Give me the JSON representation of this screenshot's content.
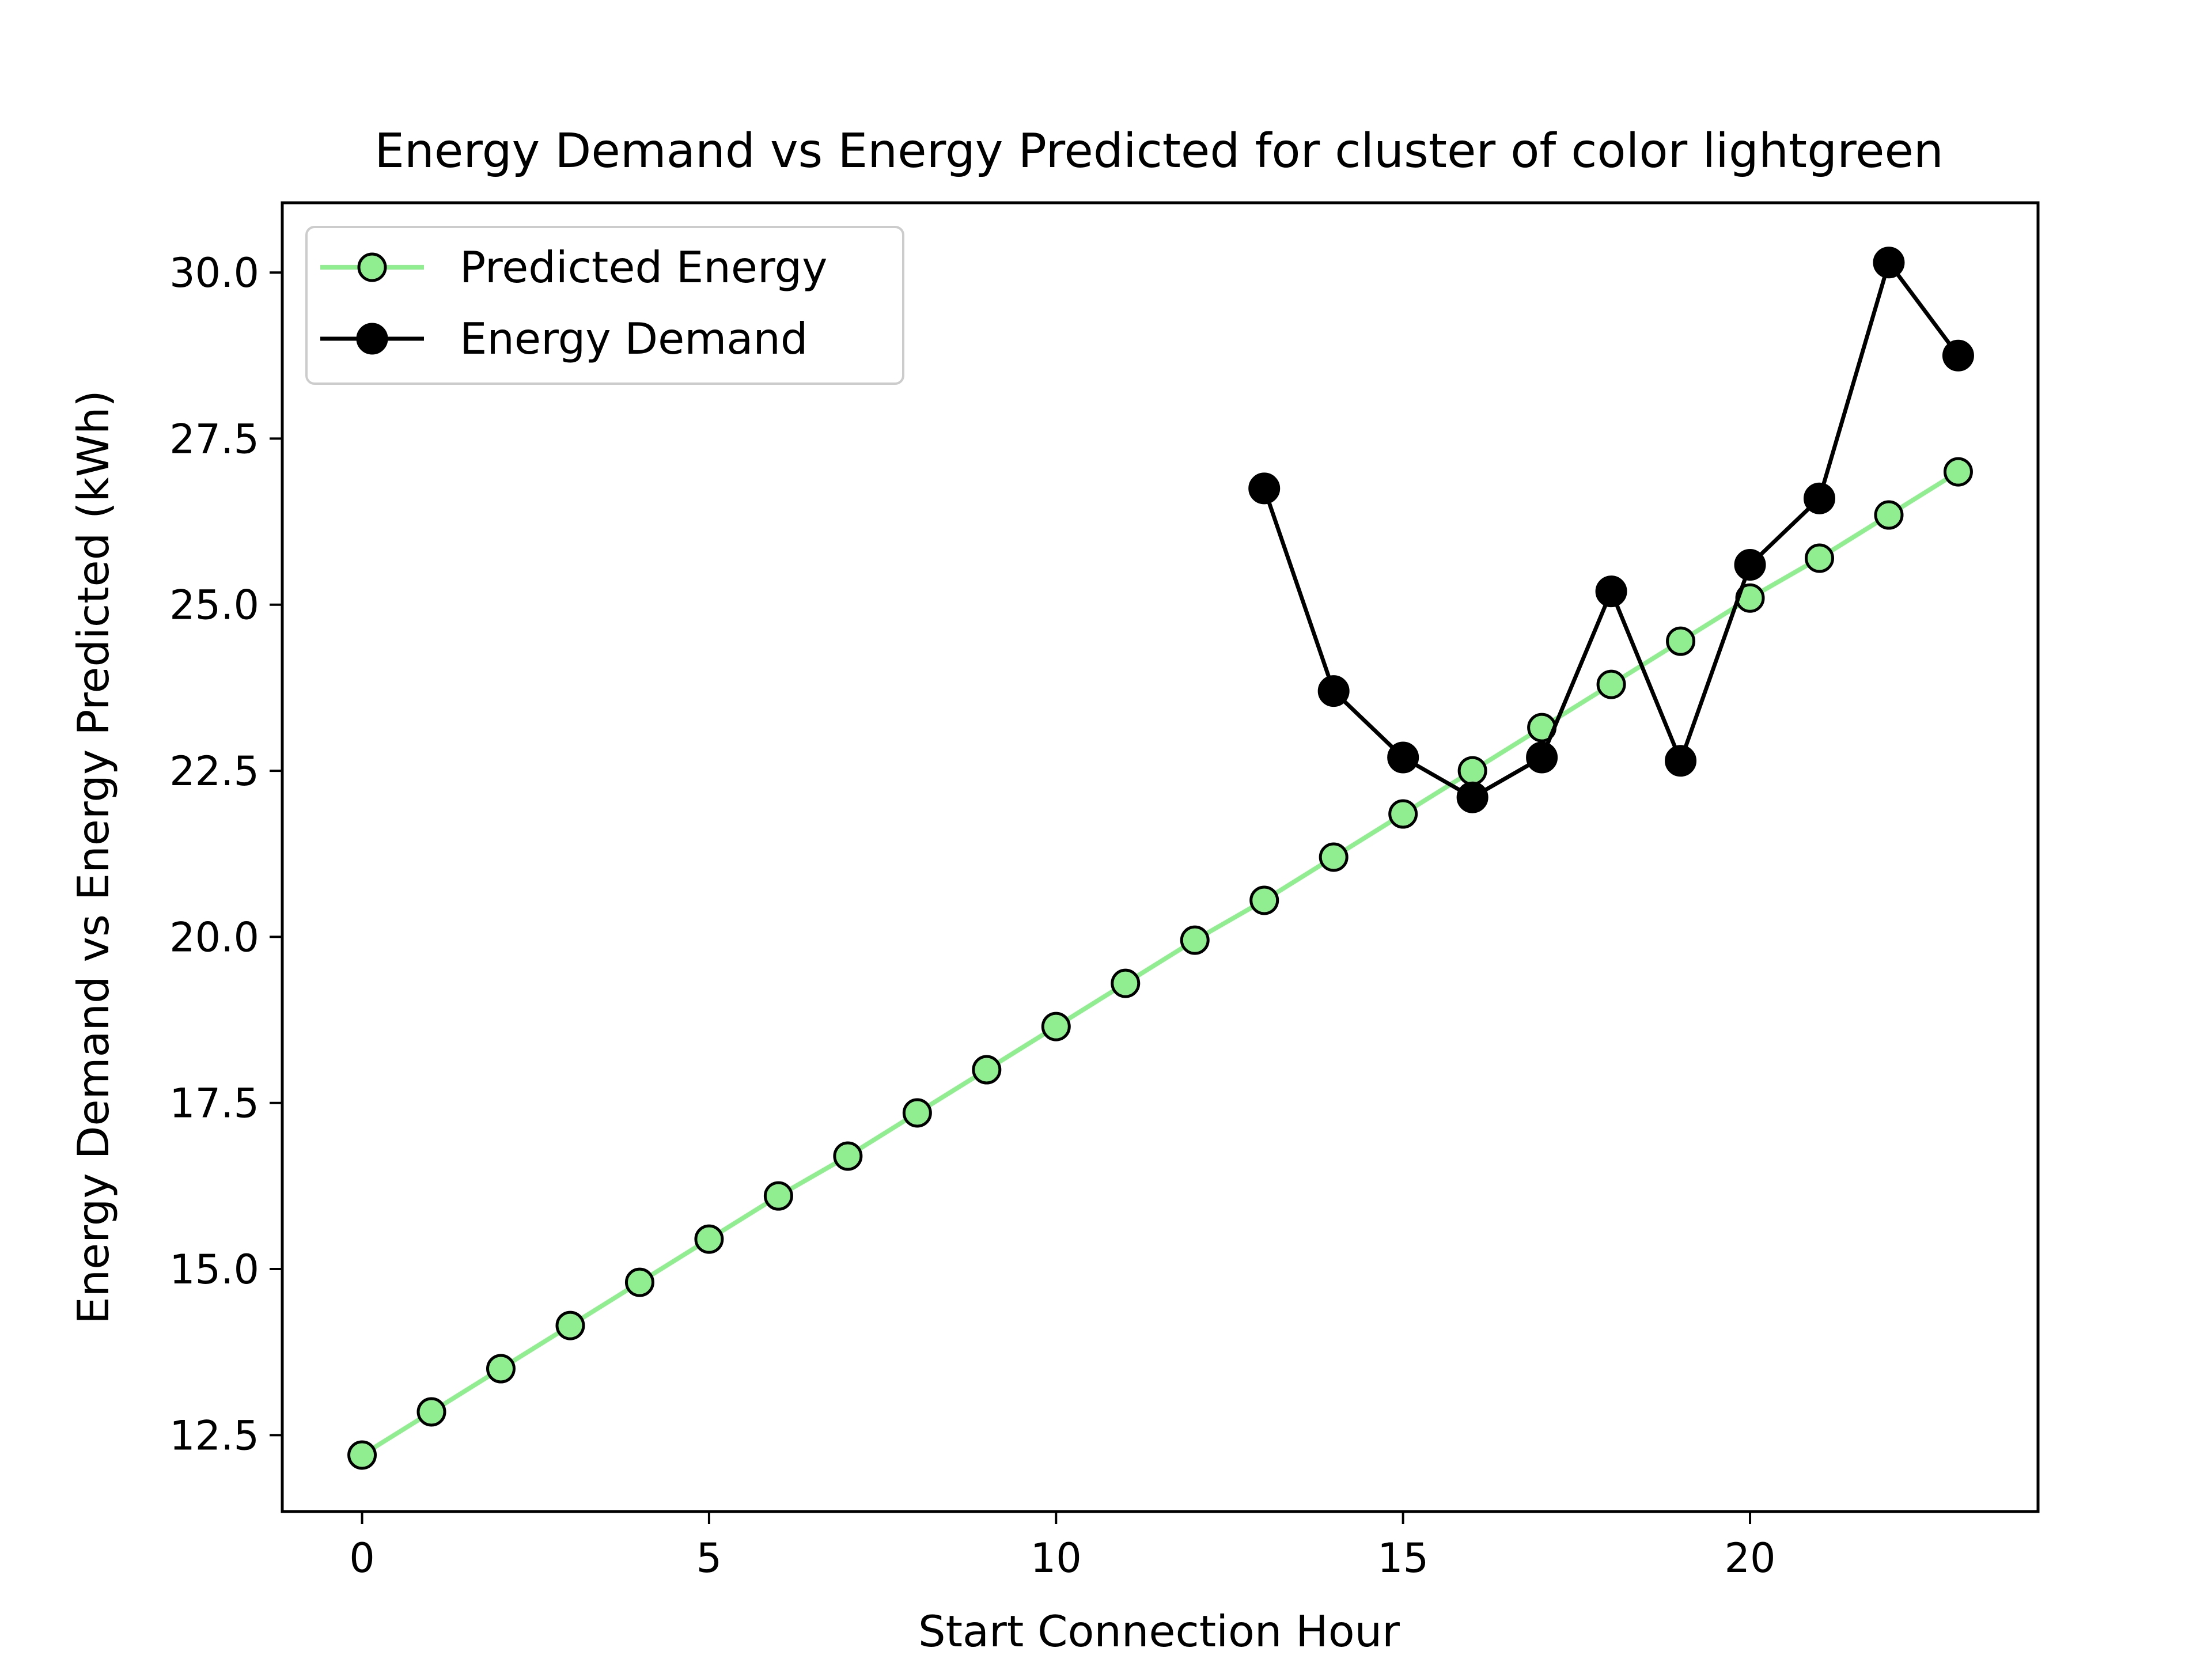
{
  "chart_data": {
    "type": "line",
    "title": "Energy Demand vs Energy Predicted for cluster of color  lightgreen",
    "xlabel": "Start Connection Hour",
    "ylabel": "Energy Demand vs Energy Predicted (kWh)",
    "xlim": [
      -1.15,
      24.15
    ],
    "ylim": [
      11.35,
      31.05
    ],
    "xticks": [
      0,
      5,
      10,
      15,
      20
    ],
    "xtick_labels": [
      "0",
      "5",
      "10",
      "15",
      "20"
    ],
    "yticks": [
      12.5,
      15.0,
      17.5,
      20.0,
      22.5,
      25.0,
      27.5,
      30.0
    ],
    "ytick_labels": [
      "12.5",
      "15.0",
      "17.5",
      "20.0",
      "22.5",
      "25.0",
      "27.5",
      "30.0"
    ],
    "grid": false,
    "legend_position": "top-left",
    "series": [
      {
        "name": "Predicted Energy",
        "color": "#90ee90",
        "marker_fill": "#90ee90",
        "marker_edge": "#000000",
        "x": [
          0,
          1,
          2,
          3,
          4,
          5,
          6,
          7,
          8,
          9,
          10,
          11,
          12,
          13,
          14,
          15,
          16,
          17,
          18,
          19,
          20,
          21,
          22,
          23
        ],
        "y": [
          12.2,
          12.85,
          13.5,
          14.15,
          14.8,
          15.45,
          16.1,
          16.7,
          17.35,
          18.0,
          18.65,
          19.3,
          19.95,
          20.55,
          21.2,
          21.85,
          22.5,
          23.15,
          23.8,
          24.45,
          25.1,
          25.7,
          26.35,
          27.0
        ]
      },
      {
        "name": "Energy Demand",
        "color": "#000000",
        "marker_fill": "#000000",
        "marker_edge": "#000000",
        "x": [
          13,
          14,
          15,
          16,
          17,
          18,
          19,
          20,
          21,
          22,
          23
        ],
        "y": [
          26.75,
          23.7,
          22.7,
          22.1,
          22.7,
          25.2,
          22.65,
          25.6,
          26.6,
          30.15,
          28.75
        ]
      }
    ]
  }
}
